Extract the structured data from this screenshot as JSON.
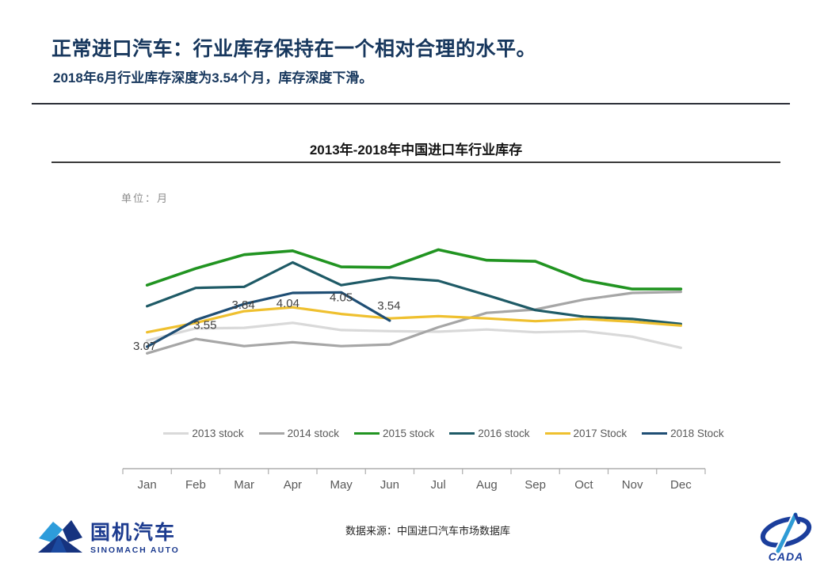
{
  "header": {
    "title": "正常进口汽车：行业库存保持在一个相对合理的水平。",
    "subtitle": "2018年6月行业库存深度为3.54个月，库存深度下滑。",
    "title_color": "#17375D"
  },
  "chart_data": {
    "type": "line",
    "title": "2013年-2018年中国进口车行业库存",
    "unit_label": "单位：月",
    "ylabel": "月",
    "categories": [
      "Jan",
      "Feb",
      "Mar",
      "Apr",
      "May",
      "Jun",
      "Jul",
      "Aug",
      "Sep",
      "Oct",
      "Nov",
      "Dec"
    ],
    "series": [
      {
        "name": "2013 stock",
        "color": "#D9D9D9",
        "values": [
          3.18,
          3.4,
          3.41,
          3.5,
          3.37,
          3.35,
          3.34,
          3.38,
          3.33,
          3.35,
          3.25,
          3.05
        ]
      },
      {
        "name": "2014 stock",
        "color": "#A6A6A6",
        "values": [
          2.95,
          3.21,
          3.08,
          3.15,
          3.08,
          3.11,
          3.42,
          3.68,
          3.74,
          3.92,
          4.04,
          4.06
        ]
      },
      {
        "name": "2015 stock",
        "color": "#219421",
        "values": [
          4.18,
          4.48,
          4.73,
          4.8,
          4.51,
          4.5,
          4.82,
          4.63,
          4.61,
          4.27,
          4.11,
          4.11
        ]
      },
      {
        "name": "2016 stock",
        "color": "#1E5A66",
        "values": [
          3.8,
          4.13,
          4.15,
          4.59,
          4.18,
          4.32,
          4.26,
          4.0,
          3.73,
          3.61,
          3.57,
          3.48
        ]
      },
      {
        "name": "2017 Stock",
        "color": "#EFC02F",
        "values": [
          3.33,
          3.5,
          3.71,
          3.78,
          3.66,
          3.58,
          3.62,
          3.58,
          3.53,
          3.57,
          3.52,
          3.45
        ]
      },
      {
        "name": "2018 Stock",
        "color": "#1F4E74",
        "values": [
          3.07,
          3.55,
          3.84,
          4.04,
          4.05,
          3.54
        ]
      }
    ],
    "data_labels": {
      "series": "2018 Stock",
      "values": [
        "3.07",
        "3.55",
        "3.84",
        "4.04",
        "4.05",
        "3.54"
      ]
    },
    "legend_position": "bottom",
    "grid": false,
    "ylim": [
      2.6,
      5.2
    ],
    "axis_color": "#ADADAD",
    "tick_label_color": "#595959",
    "data_label_color": "#3F3F3F"
  },
  "footer": {
    "source": "数据来源：中国进口汽车市场数据库",
    "logo_left": {
      "cn": "国机汽车",
      "en": "SINOMACH AUTO"
    },
    "logo_right": {
      "text": "CADA"
    }
  }
}
